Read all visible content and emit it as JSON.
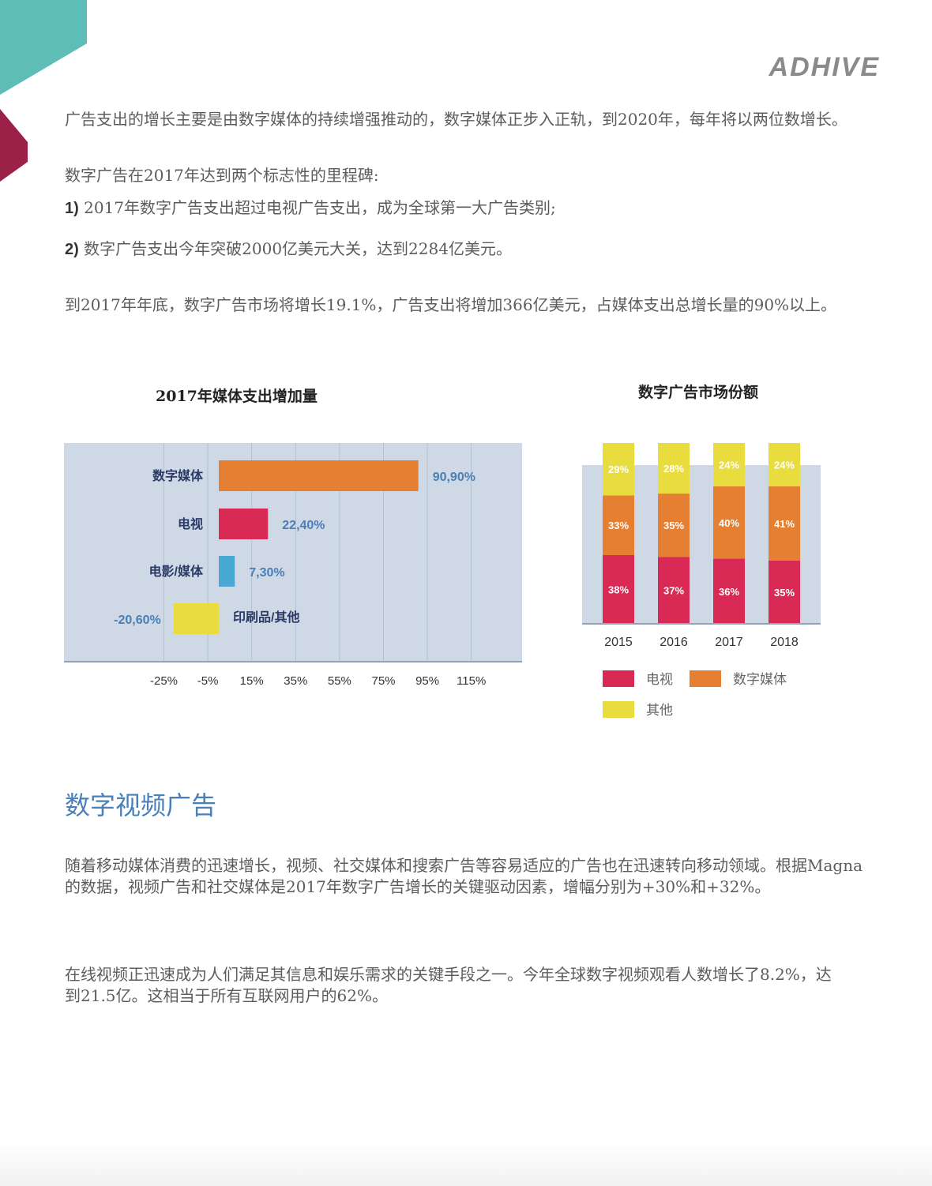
{
  "logo": "ADHIVE",
  "paragraphs": {
    "p1": "广告支出的增长主要是由数字媒体的持续增强推动的，数字媒体正步入正轨，到2020年，每年将以两位数增长。",
    "p2": "数字广告在2017年达到两个标志性的里程碑:",
    "p3_num": "1)",
    "p3": " 2017年数字广告支出超过电视广告支出，成为全球第一大广告类别;",
    "p4_num": "2)",
    "p4": " 数字广告支出今年突破2000亿美元大关，达到2284亿美元。",
    "p5": "到2017年年底，数字广告市场将增长19.1%，广告支出将增加366亿美元，占媒体支出总增长量的90%以上。"
  },
  "section": {
    "heading": "数字视频广告",
    "p1": "随着移动媒体消费的迅速增长，视频、社交媒体和搜索广告等容易适应的广告也在迅速转向移动领域。根据Magna的数据，视频广告和社交媒体是2017年数字广告增长的关键驱动因素，增幅分别为+30%和+32%。",
    "p2": "在线视频正迅速成为人们满足其信息和娱乐需求的关键手段之一。今年全球数字视频观看人数增长了8.2%，达到21.5亿。这相当于所有互联网用户的62%。"
  },
  "chart_data": [
    {
      "type": "bar",
      "orientation": "horizontal",
      "title": "2017年媒体支出增加量",
      "categories": [
        "数字媒体",
        "电视",
        "电影/媒体",
        "印刷品/其他"
      ],
      "values": [
        90.9,
        22.4,
        7.3,
        -20.6
      ],
      "value_labels": [
        "90,90%",
        "22,40%",
        "7,30%",
        "-20,60%"
      ],
      "colors": [
        "#e57f32",
        "#d92a55",
        "#4aa9d2",
        "#e8dc3f"
      ],
      "xticks": [
        "-25%",
        "-5%",
        "15%",
        "35%",
        "55%",
        "75%",
        "95%",
        "115%"
      ],
      "xtick_values": [
        -25,
        -5,
        15,
        35,
        55,
        75,
        95,
        115
      ],
      "grid": true,
      "background": "#cfd9e6"
    },
    {
      "type": "bar",
      "stacked": true,
      "title": "数字广告市场份额",
      "categories": [
        "2015",
        "2016",
        "2017",
        "2018"
      ],
      "series": [
        {
          "name": "电视",
          "values": [
            38,
            37,
            36,
            35
          ],
          "color": "#d92a55"
        },
        {
          "name": "数字媒体",
          "values": [
            33,
            35,
            40,
            41
          ],
          "color": "#e57f32"
        },
        {
          "name": "其他",
          "values": [
            29,
            28,
            24,
            24
          ],
          "color": "#e8dc3f"
        }
      ],
      "legend": "bottom",
      "background": "#cfd9e6"
    }
  ]
}
